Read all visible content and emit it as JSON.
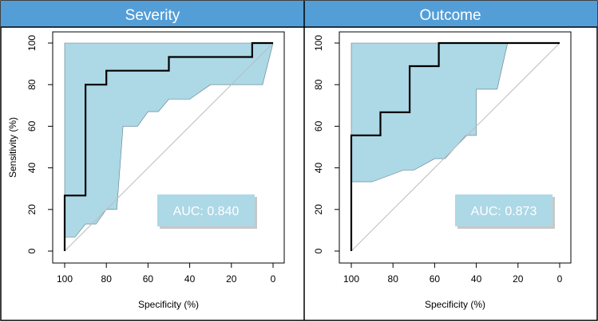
{
  "colors": {
    "header_bg": "#549ed8",
    "ci_fill": "#add8e6",
    "roc_line": "#000000",
    "diagonal": "#bdbdbd",
    "auc_box": "#add8e6"
  },
  "chart_data": [
    {
      "type": "line",
      "title": "Severity",
      "xlabel": "Specificity (%)",
      "ylabel": "Sensitivity (%)",
      "xlim": [
        100,
        0
      ],
      "ylim": [
        0,
        100
      ],
      "xticks": [
        100,
        80,
        60,
        40,
        20,
        0
      ],
      "yticks": [
        0,
        20,
        40,
        60,
        80,
        100
      ],
      "x_tick_labels": [
        "100",
        "80",
        "60",
        "40",
        "20",
        "0"
      ],
      "y_tick_labels": [
        "0",
        "20",
        "40",
        "60",
        "80",
        "100"
      ],
      "auc_label": "AUC: 0.840",
      "roc": {
        "specificity": [
          100,
          100,
          90,
          90,
          80,
          80,
          50,
          50,
          10,
          10,
          0
        ],
        "sensitivity": [
          0,
          26.7,
          26.7,
          80,
          80,
          86.7,
          86.7,
          93.3,
          93.3,
          100,
          100
        ]
      },
      "ci_upper": {
        "specificity": [
          100,
          100,
          0
        ],
        "sensitivity": [
          6.7,
          100,
          100
        ]
      },
      "ci_lower": {
        "specificity": [
          0,
          5,
          5,
          20,
          30,
          40,
          45,
          50,
          55,
          60,
          65,
          70,
          72,
          75,
          80,
          85,
          90,
          95,
          100
        ],
        "sensitivity": [
          100,
          80,
          80,
          80,
          80,
          73,
          73,
          73,
          67,
          67,
          60,
          60,
          60,
          20,
          20,
          13,
          13,
          6.7,
          6.7
        ]
      }
    },
    {
      "type": "line",
      "title": "Outcome",
      "xlabel": "Specificity (%)",
      "ylabel": "",
      "xlim": [
        100,
        0
      ],
      "ylim": [
        0,
        100
      ],
      "xticks": [
        100,
        80,
        60,
        40,
        20,
        0
      ],
      "yticks": [
        0,
        20,
        40,
        60,
        80,
        100
      ],
      "x_tick_labels": [
        "100",
        "80",
        "60",
        "40",
        "20",
        "0"
      ],
      "y_tick_labels": [
        "0",
        "20",
        "40",
        "60",
        "80",
        "100"
      ],
      "auc_label": "AUC: 0.873",
      "roc": {
        "specificity": [
          100,
          100,
          86,
          86,
          72,
          72,
          58,
          58,
          0
        ],
        "sensitivity": [
          0,
          55.6,
          55.6,
          66.7,
          66.7,
          88.9,
          88.9,
          100,
          100
        ]
      },
      "ci_upper": {
        "specificity": [
          100,
          100,
          25
        ],
        "sensitivity": [
          33.3,
          100,
          100
        ]
      },
      "ci_lower": {
        "specificity": [
          25,
          30,
          30,
          40,
          40,
          45,
          55,
          55,
          60,
          70,
          75,
          90,
          100
        ],
        "sensitivity": [
          100,
          77.8,
          77.8,
          77.8,
          55.6,
          55.6,
          44.4,
          44.4,
          44.4,
          38.9,
          38.9,
          33.3,
          33.3
        ]
      }
    }
  ]
}
